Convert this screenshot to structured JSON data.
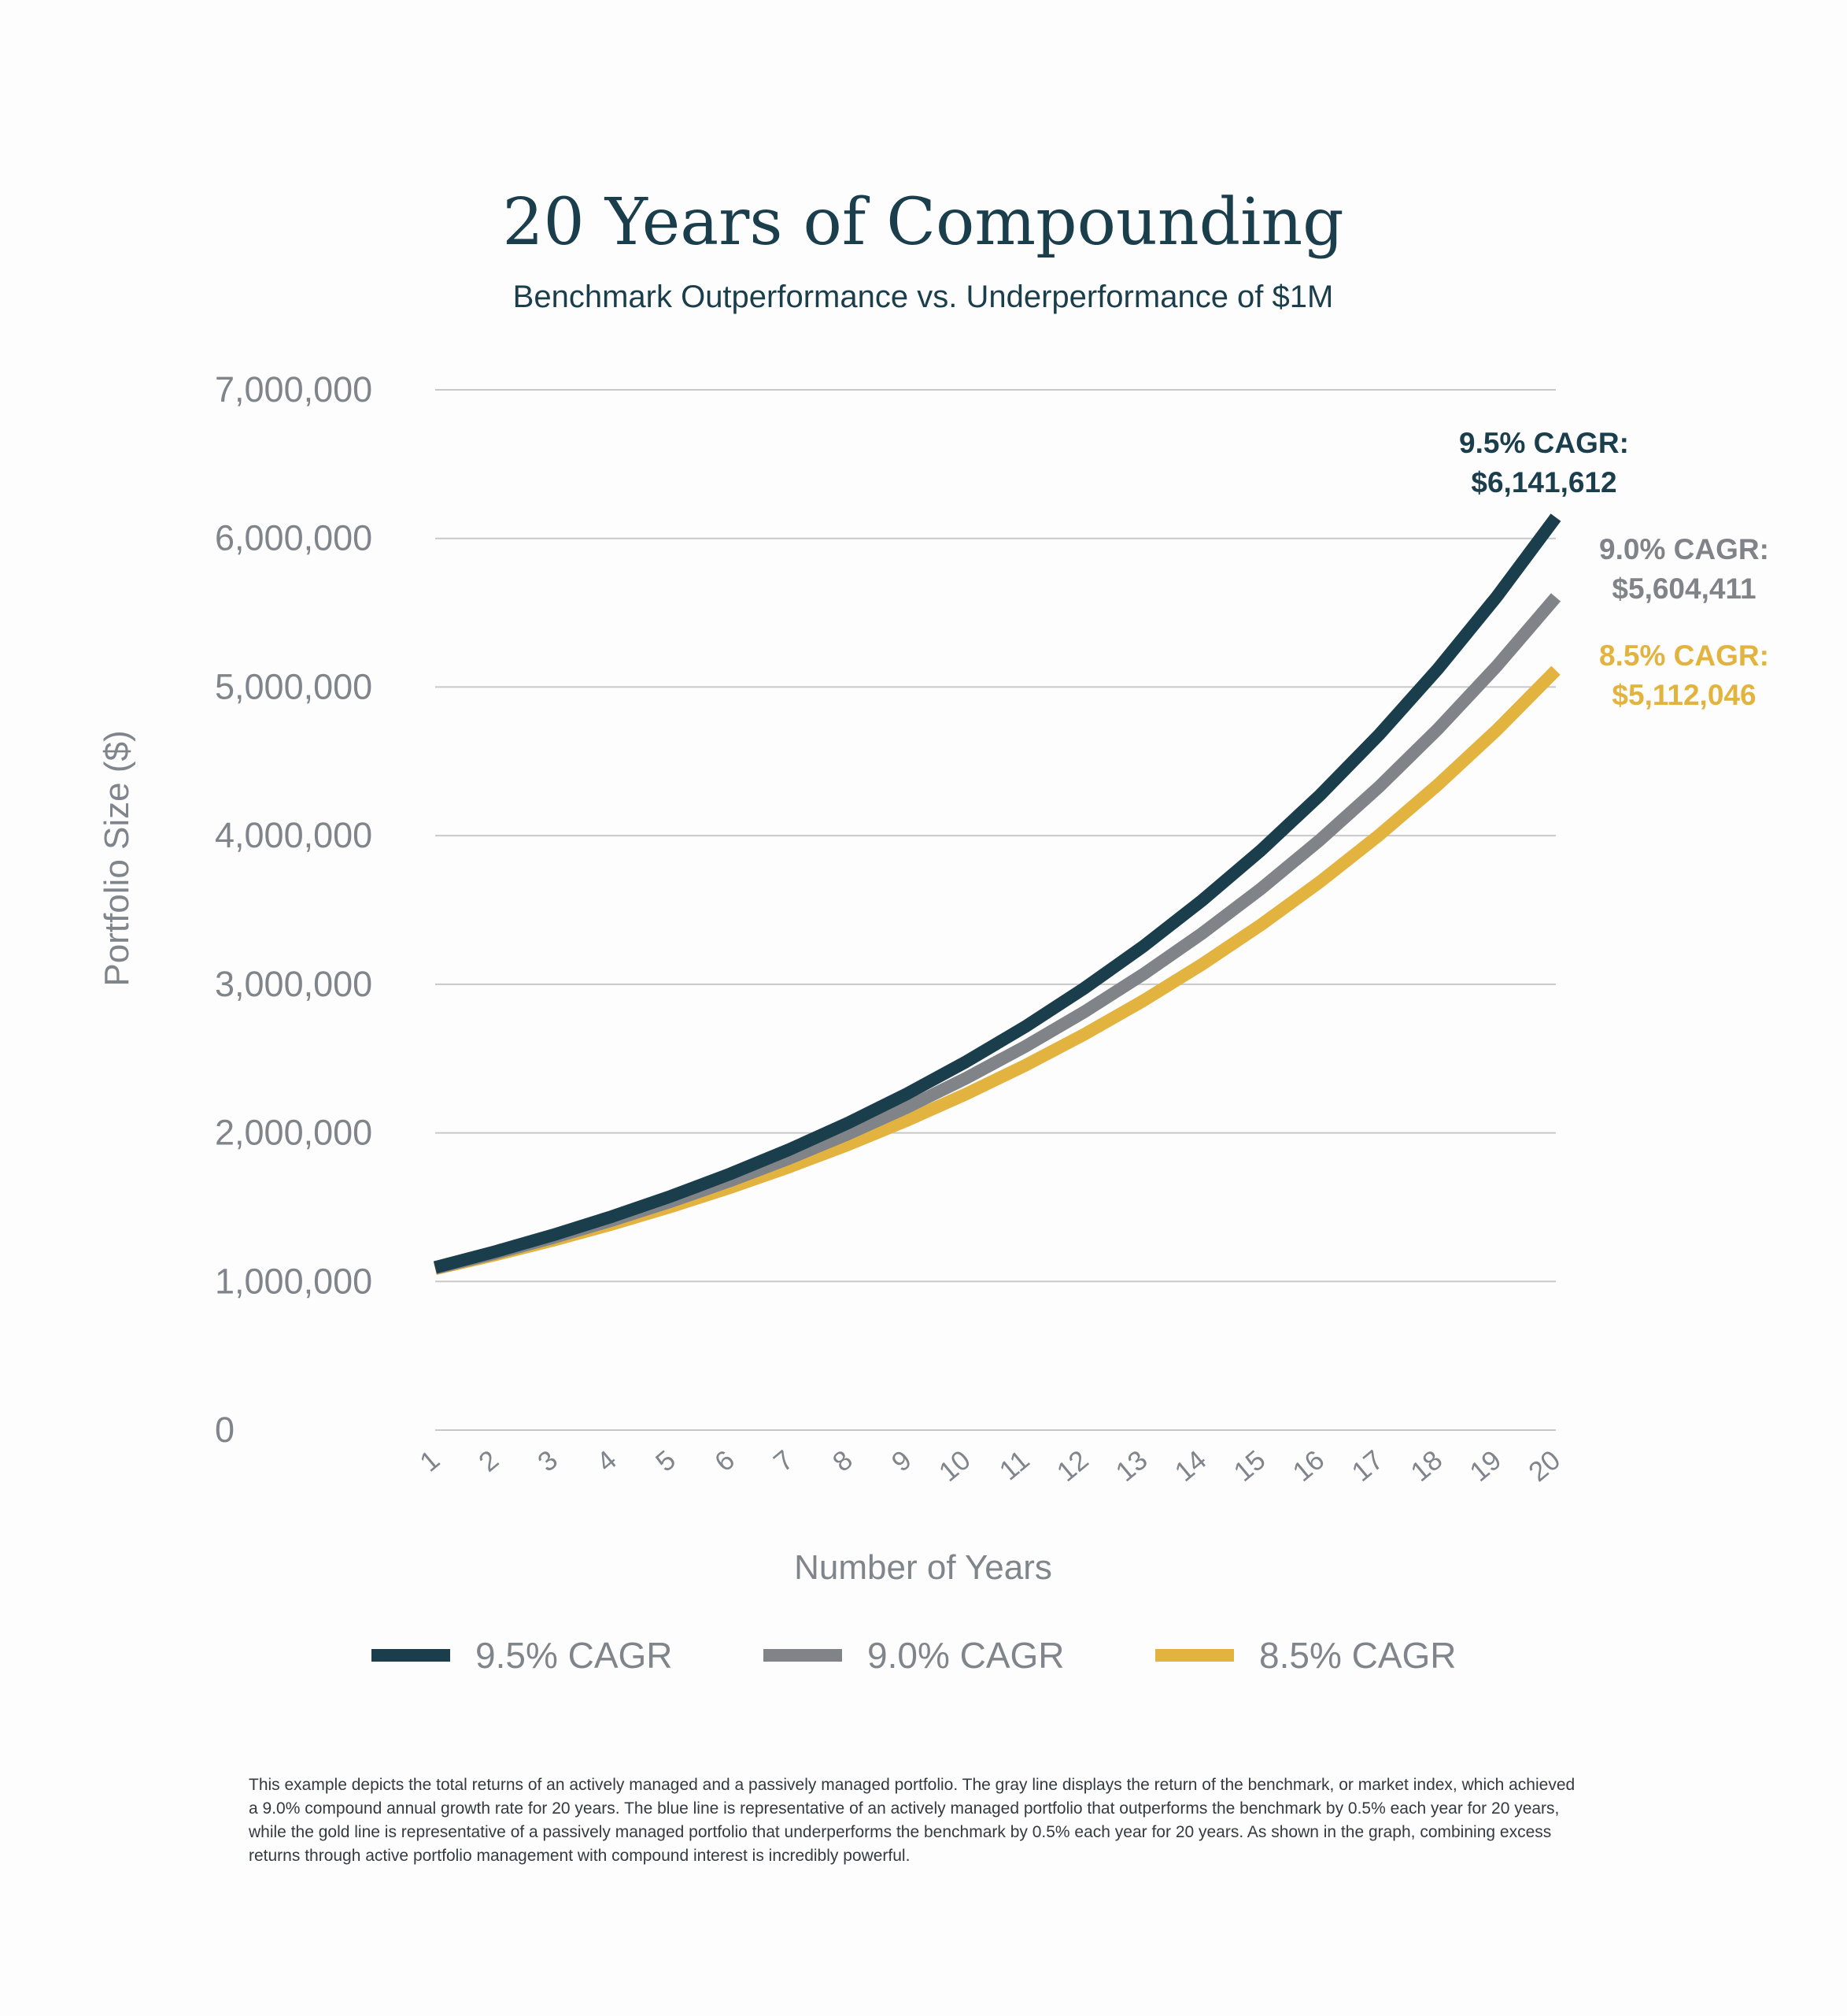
{
  "colors": {
    "series_95": "#1b3e4c",
    "series_90": "#808388",
    "series_85": "#e3b33f",
    "grid": "#c8c8c8",
    "axis_text": "#7f858b"
  },
  "chart_data": {
    "type": "line",
    "title": "20 Years of Compounding",
    "subtitle": "Benchmark Outperformance vs. Underperformance of $1M",
    "xlabel": "Number of Years",
    "ylabel": "Portfolio Size ($)",
    "x": [
      1,
      2,
      3,
      4,
      5,
      6,
      7,
      8,
      9,
      10,
      11,
      12,
      13,
      14,
      15,
      16,
      17,
      18,
      19,
      20
    ],
    "x_tick_labels": [
      "1",
      "2",
      "3",
      "4",
      "5",
      "6",
      "7",
      "8",
      "9",
      "10",
      "11",
      "12",
      "13",
      "14",
      "15",
      "16",
      "17",
      "18",
      "19",
      "20"
    ],
    "ylim": [
      0,
      7000000
    ],
    "y_tick_labels": [
      "0",
      "1,000,000",
      "2,000,000",
      "3,000,000",
      "4,000,000",
      "5,000,000",
      "6,000,000",
      "7,000,000"
    ],
    "grid": true,
    "legend_position": "bottom",
    "series": [
      {
        "name": "9.5% CAGR",
        "color": "#1b3e4c",
        "end_label": [
          "9.5% CAGR:",
          "$6,141,612"
        ],
        "values": [
          1095000,
          1199025,
          1312932,
          1437661,
          1574239,
          1723791,
          1887552,
          2066869,
          2263222,
          2478228,
          2713659,
          2971457,
          3253745,
          3562851,
          3901322,
          4271948,
          4677783,
          5122172,
          5608778,
          6141612
        ]
      },
      {
        "name": "9.0% CAGR",
        "color": "#808388",
        "end_label": [
          "9.0% CAGR:",
          "$5,604,411"
        ],
        "values": [
          1090000,
          1188100,
          1295029,
          1411582,
          1538624,
          1677100,
          1828039,
          1992563,
          2171893,
          2367364,
          2580426,
          2812665,
          3065805,
          3341727,
          3642482,
          3970306,
          4327633,
          4717120,
          5141661,
          5604411
        ]
      },
      {
        "name": "8.5% CAGR",
        "color": "#e3b33f",
        "end_label": [
          "8.5% CAGR:",
          "$5,112,046"
        ],
        "values": [
          1085000,
          1177225,
          1277289,
          1385859,
          1503657,
          1631468,
          1770142,
          1920604,
          2083856,
          2260983,
          2453167,
          2661686,
          2887930,
          3133404,
          3399743,
          3688721,
          4002262,
          4342455,
          4711563,
          5112046
        ]
      }
    ]
  },
  "footnote": "This example depicts the total returns of an actively managed and a passively managed portfolio. The gray line displays the return of the benchmark, or market index, which achieved a 9.0% compound annual growth rate for 20 years. The blue line is representative of an actively managed portfolio that outperforms the benchmark by 0.5% each year for 20 years, while the gold line is representative of a passively managed portfolio that underperforms the benchmark by 0.5% each year for 20 years. As shown in the graph, combining excess returns through active portfolio management with compound interest is incredibly powerful."
}
